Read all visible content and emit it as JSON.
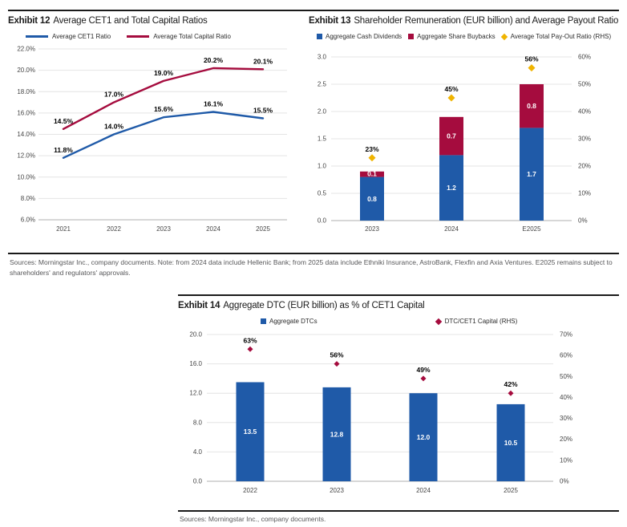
{
  "colors": {
    "blue": "#1F5AA8",
    "crimson": "#A50C3E",
    "gold": "#F0B400",
    "grid": "#E4E4E4",
    "axis": "#AFAFAF"
  },
  "sources": {
    "top": "Sources: Morningstar Inc., company documents. Note: from 2024 data include Hellenic Bank; from 2025 data include Ethniki Insurance, AstroBank, Flexfin and Axia Ventures. E2025 remains subject to shareholders' and regulators' approvals.",
    "bottom": "Sources: Morningstar Inc., company documents."
  },
  "chart_data": [
    {
      "exhibit_label": "Exhibit 12",
      "title": "Average CET1 and Total Capital Ratios",
      "type": "line",
      "categories": [
        "2021",
        "2022",
        "2023",
        "2024",
        "2025"
      ],
      "series": [
        {
          "name": "Average CET1 Ratio",
          "color_key": "blue",
          "values": [
            11.8,
            14.0,
            15.6,
            16.1,
            15.5
          ],
          "point_labels": [
            "11.8%",
            "14.0%",
            "15.6%",
            "16.1%",
            "15.5%"
          ]
        },
        {
          "name": "Average Total Capital Ratio",
          "color_key": "crimson",
          "values": [
            14.5,
            17.0,
            19.0,
            20.2,
            20.1
          ],
          "point_labels": [
            "14.5%",
            "17.0%",
            "19.0%",
            "20.2%",
            "20.1%"
          ]
        }
      ],
      "ylim": [
        6,
        22
      ],
      "yticks": [
        "22.0%",
        "20.0%",
        "18.0%",
        "16.0%",
        "14.0%",
        "12.0%",
        "10.0%",
        "8.0%",
        "6.0%"
      ],
      "grid": true,
      "legend_position": "top"
    },
    {
      "exhibit_label": "Exhibit 13",
      "title": "Shareholder Remuneration (EUR billion) and Average Payout Ratio",
      "type": "bar",
      "subtype": "stacked",
      "categories": [
        "2023",
        "2024",
        "E2025"
      ],
      "series": [
        {
          "name": "Aggregate Cash Dividends",
          "color_key": "blue",
          "values": [
            0.8,
            1.2,
            1.7
          ],
          "bar_labels": [
            "0.8",
            "1.2",
            "1.7"
          ]
        },
        {
          "name": "Aggregate Share Buybacks",
          "color_key": "crimson",
          "values": [
            0.1,
            0.7,
            0.8
          ],
          "bar_labels": [
            "0.1",
            "0.7",
            "0.8"
          ]
        }
      ],
      "rhs_series": {
        "name": "Average Total Pay-Out Ratio (RHS)",
        "color_key": "gold",
        "marker": "diamond",
        "values": [
          23,
          45,
          56
        ],
        "point_labels": [
          "23%",
          "45%",
          "56%"
        ]
      },
      "ylim": [
        0,
        3
      ],
      "yticks": [
        "3.0",
        "2.5",
        "2.0",
        "1.5",
        "1.0",
        "0.5",
        "0.0"
      ],
      "rhs_ylim": [
        0,
        60
      ],
      "rhs_yticks": [
        "60%",
        "50%",
        "40%",
        "30%",
        "20%",
        "10%",
        "0%"
      ],
      "grid": true,
      "legend_position": "top"
    },
    {
      "exhibit_label": "Exhibit 14",
      "title": "Aggregate DTC (EUR billion) as % of CET1 Capital",
      "type": "bar",
      "subtype": "single",
      "categories": [
        "2022",
        "2023",
        "2024",
        "2025"
      ],
      "series": [
        {
          "name": "Aggregate DTCs",
          "color_key": "blue",
          "values": [
            13.5,
            12.8,
            12.0,
            10.5
          ],
          "bar_labels": [
            "13.5",
            "12.8",
            "12.0",
            "10.5"
          ]
        }
      ],
      "rhs_series": {
        "name": "DTC/CET1 Capital (RHS)",
        "color_key": "crimson",
        "marker": "diamond",
        "values": [
          63,
          56,
          49,
          42
        ],
        "point_labels": [
          "63%",
          "56%",
          "49%",
          "42%"
        ]
      },
      "ylim": [
        0,
        20
      ],
      "yticks": [
        "20.0",
        "16.0",
        "12.0",
        "8.0",
        "4.0",
        "0.0"
      ],
      "rhs_ylim": [
        0,
        70
      ],
      "rhs_yticks": [
        "70%",
        "60%",
        "50%",
        "40%",
        "30%",
        "20%",
        "10%",
        "0%"
      ],
      "grid": true,
      "legend_position": "top"
    }
  ]
}
